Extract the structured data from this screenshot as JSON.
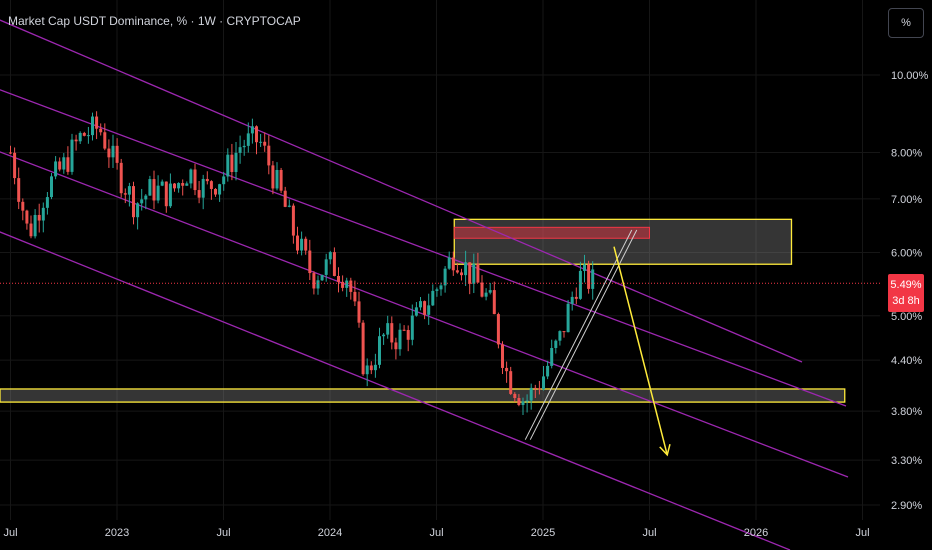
{
  "header": {
    "title": "Market Cap USDT Dominance, % · 1W · CRYPTOCAP"
  },
  "scale_button": {
    "label": "%"
  },
  "current": {
    "price_label": "5.49%",
    "countdown_label": "3d 8h"
  },
  "colors": {
    "up": "#26a69a",
    "down": "#ef5350",
    "channel": "#9c27b0",
    "zone_border": "#ffeb3b",
    "arrow": "#ffeb3b",
    "badge": "#f23645"
  },
  "chart_data": {
    "type": "candlestick",
    "symbol": "Market Cap USDT Dominance, %",
    "interval": "1W",
    "source": "CRYPTOCAP",
    "y_scale": "log",
    "y_ticks": [
      "10.00%",
      "8.00%",
      "7.00%",
      "6.00%",
      "5.00%",
      "4.40%",
      "3.80%",
      "3.30%",
      "2.90%"
    ],
    "y_tick_values": [
      10.0,
      8.0,
      7.0,
      6.0,
      5.0,
      4.4,
      3.8,
      3.3,
      2.9
    ],
    "x_ticks": [
      "Jul",
      "2023",
      "Jul",
      "2024",
      "Jul",
      "2025",
      "Jul",
      "2026",
      "Jul"
    ],
    "current_price": 5.49,
    "price_path": [
      [
        "2022-07",
        8.0
      ],
      [
        "2022-08",
        6.3
      ],
      [
        "2022-09",
        7.2
      ],
      [
        "2022-10",
        7.7
      ],
      [
        "2022-11",
        8.4
      ],
      [
        "2022-12",
        8.6
      ],
      [
        "2023-01",
        7.6
      ],
      [
        "2023-02",
        6.9
      ],
      [
        "2023-03",
        7.2
      ],
      [
        "2023-04",
        7.1
      ],
      [
        "2023-05",
        7.6
      ],
      [
        "2023-06",
        7.2
      ],
      [
        "2023-07",
        7.5
      ],
      [
        "2023-08",
        8.2
      ],
      [
        "2023-09",
        8.3
      ],
      [
        "2023-10",
        7.3
      ],
      [
        "2023-11",
        6.3
      ],
      [
        "2023-12",
        5.6
      ],
      [
        "2024-01",
        5.8
      ],
      [
        "2024-02",
        5.6
      ],
      [
        "2024-03",
        4.2
      ],
      [
        "2024-04",
        4.7
      ],
      [
        "2024-05",
        4.7
      ],
      [
        "2024-06",
        5.0
      ],
      [
        "2024-07",
        5.4
      ],
      [
        "2024-08",
        6.0
      ],
      [
        "2024-09",
        5.6
      ],
      [
        "2024-10",
        5.2
      ],
      [
        "2024-11",
        4.2
      ],
      [
        "2024-12",
        3.9
      ],
      [
        "2025-01",
        4.2
      ],
      [
        "2025-02",
        4.7
      ],
      [
        "2025-03",
        5.6
      ],
      [
        "2025-04",
        5.49
      ]
    ],
    "zones": [
      {
        "name": "resistance zone",
        "from": "2024-08",
        "to": "2026-03",
        "low": 5.8,
        "high": 6.6
      },
      {
        "name": "support zone",
        "from": "2022-06",
        "to": "2026-06",
        "low": 3.9,
        "high": 4.05
      }
    ],
    "projection": {
      "from": [
        "2025-05",
        6.1
      ],
      "to": [
        "2025-08",
        3.35
      ]
    }
  }
}
